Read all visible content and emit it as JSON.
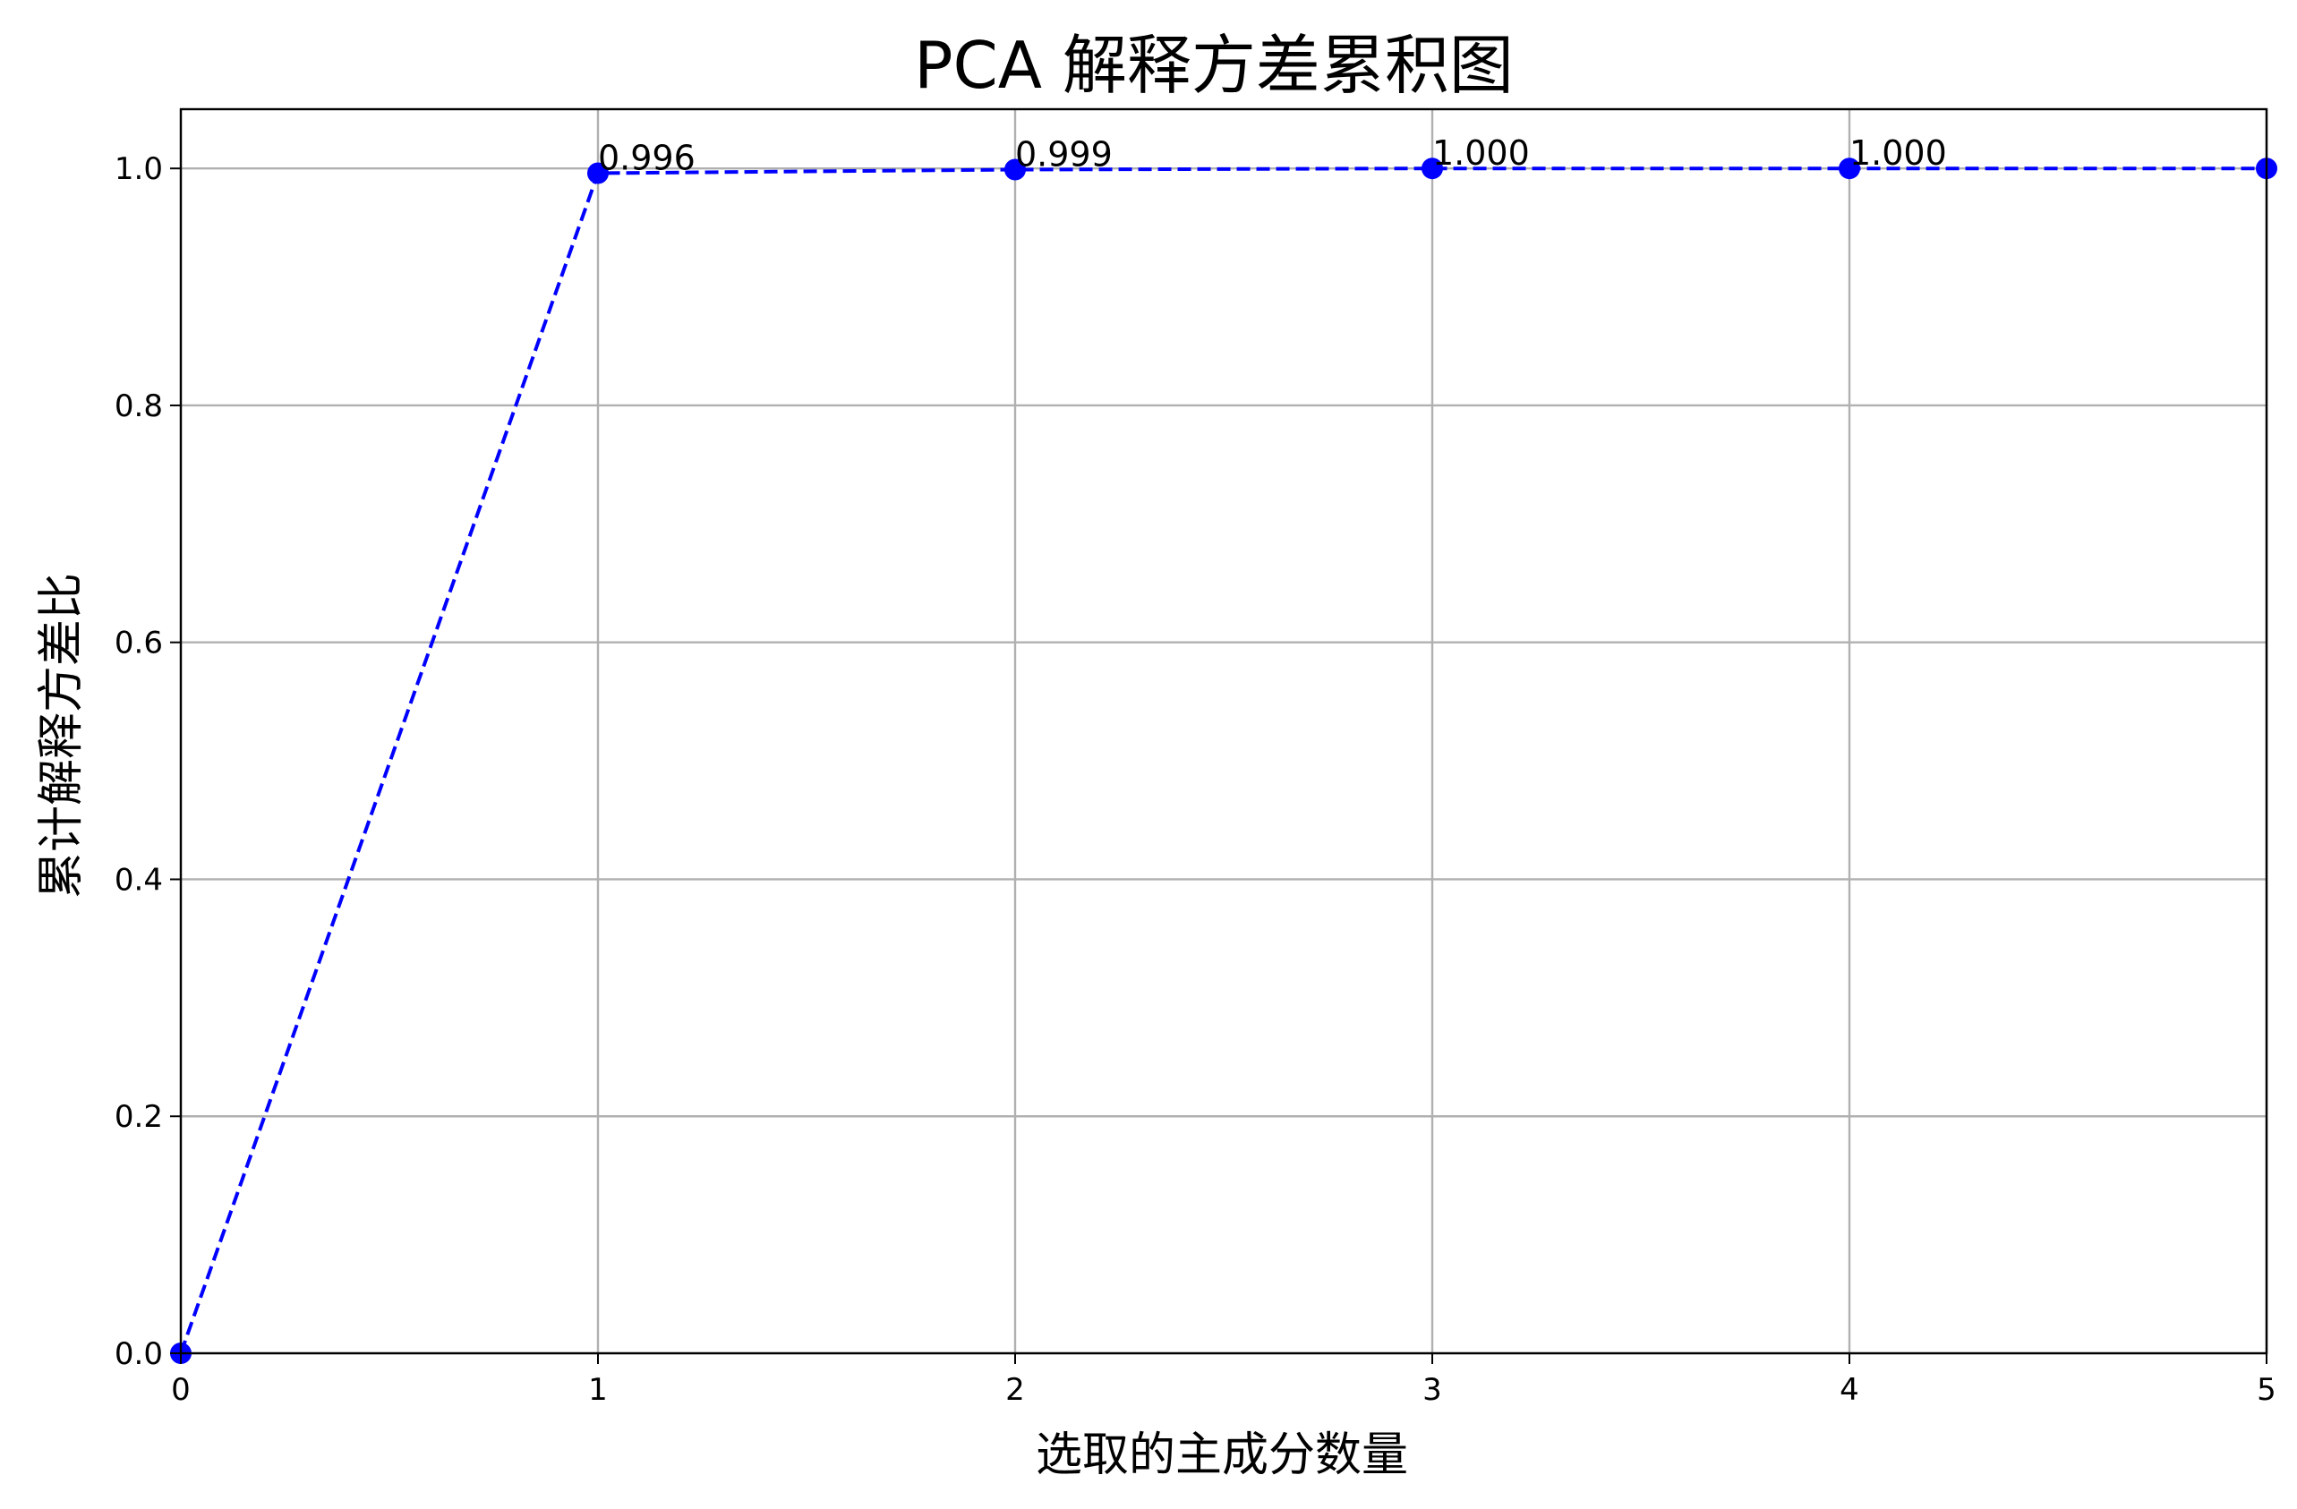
{
  "chart_data": {
    "type": "line",
    "title": "PCA 解释方差累积图",
    "xlabel": "选取的主成分数量",
    "ylabel": "累计解释方差比",
    "x": [
      0,
      1,
      2,
      3,
      4,
      5
    ],
    "series": [
      {
        "values": [
          0.0,
          0.996,
          0.999,
          1.0,
          1.0,
          1.0
        ],
        "color": "#0000ff",
        "line_style": "dashed",
        "marker": "circle"
      }
    ],
    "data_labels": [
      {
        "x": 1,
        "text": "0.996"
      },
      {
        "x": 2,
        "text": "0.999"
      },
      {
        "x": 3,
        "text": "1.000"
      },
      {
        "x": 4,
        "text": "1.000"
      }
    ],
    "xlim": [
      0,
      5
    ],
    "ylim": [
      0,
      1.05
    ],
    "x_ticks": [
      0,
      1,
      2,
      3,
      4,
      5
    ],
    "x_tick_labels": [
      "0",
      "1",
      "2",
      "3",
      "4",
      "5"
    ],
    "y_ticks": [
      0.0,
      0.2,
      0.4,
      0.6,
      0.8,
      1.0
    ],
    "y_tick_labels": [
      "0.0",
      "0.2",
      "0.4",
      "0.6",
      "0.8",
      "1.0"
    ],
    "grid": true,
    "grid_color": "#b0b0b0"
  }
}
